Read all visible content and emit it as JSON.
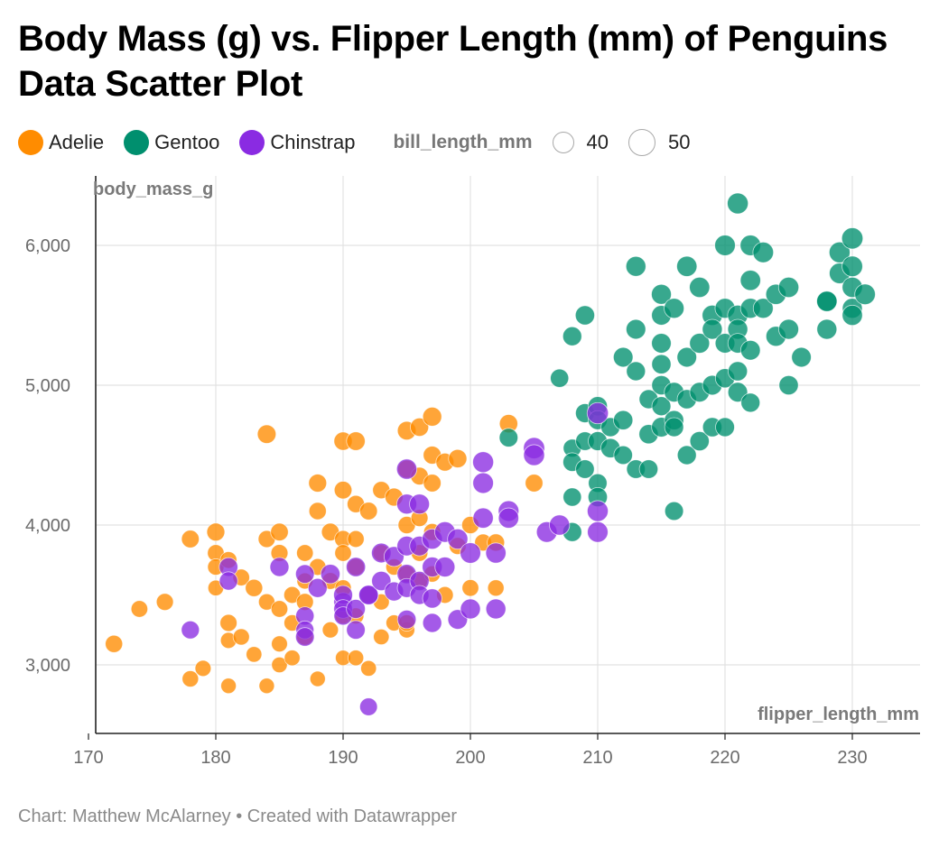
{
  "colors": {
    "Adelie": "#ff8c00",
    "Gentoo": "#008f6e",
    "Chinstrap": "#8a2be2",
    "grid": "#e2e2e2",
    "axis": "#222222"
  },
  "legend": {
    "species": [
      "Adelie",
      "Gentoo",
      "Chinstrap"
    ],
    "size_title": "bill_length_mm",
    "size_values": [
      "40",
      "50"
    ]
  },
  "credit": "Chart: Matthew McAlarney • Created with Datawrapper",
  "chart_data": {
    "type": "scatter",
    "title": "Body Mass (g) vs. Flipper Length (mm) of Penguins Data Scatter Plot",
    "xlabel": "flipper_length_mm",
    "ylabel": "body_mass_g",
    "xlim": [
      169,
      234
    ],
    "ylim": [
      2500,
      6500
    ],
    "xticks": [
      170,
      180,
      190,
      200,
      210,
      220,
      230
    ],
    "xtick_labels": [
      "170",
      "180",
      "190",
      "200",
      "210",
      "220",
      "230"
    ],
    "yticks": [
      3000,
      4000,
      5000,
      6000
    ],
    "ytick_labels": [
      "3,000",
      "4,000",
      "5,000",
      "6,000"
    ],
    "grid": true,
    "legend_position": "top-left",
    "series": [
      {
        "name": "Adelie",
        "x": [
          172,
          174,
          176,
          178,
          178,
          179,
          180,
          180,
          180,
          180,
          181,
          181,
          181,
          181,
          182,
          182,
          183,
          183,
          184,
          184,
          184,
          184,
          185,
          185,
          185,
          185,
          185,
          186,
          186,
          186,
          187,
          187,
          187,
          187,
          188,
          188,
          188,
          188,
          189,
          189,
          189,
          190,
          190,
          190,
          190,
          190,
          190,
          190,
          191,
          191,
          191,
          191,
          191,
          191,
          192,
          192,
          192,
          193,
          193,
          193,
          193,
          194,
          194,
          194,
          195,
          195,
          195,
          195,
          195,
          195,
          196,
          196,
          196,
          196,
          196,
          197,
          197,
          197,
          197,
          197,
          198,
          198,
          199,
          199,
          200,
          200,
          201,
          202,
          202,
          203,
          205
        ],
        "y": [
          3150,
          3400,
          3450,
          2900,
          3900,
          2975,
          3950,
          3800,
          3700,
          3550,
          3750,
          3300,
          3175,
          2850,
          3200,
          3625,
          3550,
          3075,
          4650,
          3900,
          3450,
          2850,
          3950,
          3400,
          3150,
          3000,
          3800,
          3500,
          3300,
          3050,
          3800,
          3600,
          3200,
          3450,
          4300,
          4100,
          3700,
          2900,
          3950,
          3600,
          3250,
          4600,
          4250,
          3900,
          3800,
          3550,
          3350,
          3050,
          4600,
          4150,
          3900,
          3700,
          3350,
          3050,
          4100,
          3500,
          2975,
          4250,
          3800,
          3450,
          3200,
          4200,
          3700,
          3300,
          4675,
          4400,
          4000,
          3650,
          3250,
          3300,
          4700,
          4350,
          4050,
          3800,
          3600,
          4775,
          4500,
          4300,
          3950,
          3650,
          4450,
          3500,
          4475,
          3850,
          4000,
          3550,
          3875,
          3550,
          3875,
          4725,
          4300
        ],
        "sizes": [
          42,
          40,
          41,
          39,
          43,
          38,
          44,
          40,
          39,
          37,
          40,
          41,
          38,
          36,
          39,
          40,
          42,
          37,
          46,
          41,
          39,
          36,
          43,
          40,
          38,
          37,
          41,
          40,
          39,
          37,
          40,
          38,
          39,
          41,
          44,
          42,
          40,
          36,
          43,
          40,
          38,
          45,
          43,
          41,
          40,
          39,
          38,
          36,
          46,
          42,
          40,
          41,
          38,
          37,
          43,
          39,
          37,
          42,
          40,
          38,
          37,
          44,
          39,
          38,
          46,
          44,
          42,
          40,
          38,
          39,
          45,
          43,
          41,
          40,
          39,
          47,
          44,
          43,
          41,
          39,
          44,
          40,
          45,
          41,
          42,
          40,
          41,
          39,
          42,
          45,
          43
        ]
      },
      {
        "name": "Gentoo",
        "x": [
          203,
          207,
          208,
          208,
          208,
          208,
          208,
          209,
          209,
          209,
          209,
          210,
          210,
          210,
          210,
          210,
          211,
          211,
          212,
          212,
          212,
          213,
          213,
          213,
          213,
          214,
          214,
          214,
          215,
          215,
          215,
          215,
          215,
          215,
          215,
          216,
          216,
          216,
          216,
          216,
          217,
          217,
          217,
          217,
          218,
          218,
          218,
          218,
          219,
          219,
          219,
          219,
          220,
          220,
          220,
          220,
          220,
          221,
          221,
          221,
          221,
          221,
          221,
          222,
          222,
          222,
          222,
          222,
          223,
          223,
          224,
          224,
          225,
          225,
          225,
          226,
          228,
          228,
          228,
          229,
          229,
          230,
          230,
          230,
          230,
          230,
          231
        ],
        "y": [
          4625,
          5050,
          5350,
          4550,
          4450,
          4200,
          3950,
          5500,
          4800,
          4600,
          4400,
          4850,
          4750,
          4600,
          4300,
          4200,
          4700,
          4550,
          5200,
          4750,
          4500,
          5850,
          5400,
          5100,
          4400,
          4650,
          4900,
          4400,
          5650,
          5500,
          5300,
          5150,
          5000,
          4850,
          4700,
          5550,
          4750,
          4950,
          4700,
          4100,
          5850,
          5200,
          4900,
          4500,
          5700,
          5300,
          4950,
          4600,
          5500,
          5400,
          5000,
          4700,
          6000,
          5550,
          5300,
          5050,
          4700,
          6300,
          5500,
          5400,
          5300,
          5100,
          4950,
          6000,
          5750,
          5550,
          5250,
          4875,
          5950,
          5550,
          5650,
          5350,
          5700,
          5400,
          5000,
          5200,
          5600,
          5600,
          5400,
          5950,
          5800,
          6050,
          5850,
          5700,
          5550,
          5500,
          5650
        ],
        "sizes": [
          46,
          45,
          47,
          44,
          46,
          45,
          47,
          48,
          47,
          46,
          46,
          48,
          47,
          47,
          46,
          48,
          47,
          48,
          49,
          48,
          46,
          50,
          49,
          47,
          46,
          48,
          47,
          46,
          50,
          49,
          49,
          48,
          48,
          47,
          49,
          50,
          48,
          49,
          47,
          46,
          51,
          49,
          48,
          47,
          51,
          50,
          49,
          48,
          51,
          50,
          49,
          48,
          52,
          50,
          49,
          48,
          47,
          53,
          51,
          50,
          49,
          48,
          49,
          52,
          51,
          50,
          49,
          47,
          52,
          50,
          51,
          50,
          51,
          50,
          48,
          49,
          52,
          51,
          50,
          53,
          52,
          54,
          52,
          51,
          50,
          51,
          52
        ]
      },
      {
        "name": "Chinstrap",
        "x": [
          178,
          181,
          181,
          185,
          187,
          187,
          187,
          187,
          188,
          189,
          190,
          190,
          190,
          190,
          191,
          191,
          191,
          192,
          192,
          192,
          193,
          193,
          194,
          194,
          195,
          195,
          195,
          195,
          195,
          195,
          196,
          196,
          196,
          196,
          197,
          197,
          197,
          197,
          198,
          198,
          199,
          199,
          200,
          200,
          201,
          201,
          201,
          202,
          202,
          203,
          203,
          205,
          205,
          206,
          207,
          210,
          210,
          210
        ],
        "y": [
          3250,
          3700,
          3600,
          3700,
          3650,
          3350,
          3250,
          3200,
          3550,
          3650,
          3450,
          3500,
          3400,
          3350,
          3700,
          3400,
          3250,
          3500,
          3500,
          2700,
          3800,
          3600,
          3775,
          3525,
          4400,
          4150,
          3850,
          3650,
          3550,
          3325,
          4150,
          3850,
          3600,
          3500,
          3900,
          3700,
          3475,
          3300,
          3950,
          3700,
          3900,
          3325,
          3800,
          3400,
          4450,
          4300,
          4050,
          3800,
          3400,
          4100,
          4050,
          4550,
          4500,
          3950,
          4000,
          4800,
          4100,
          3950
        ],
        "sizes": [
          44,
          46,
          45,
          47,
          46,
          45,
          44,
          46,
          47,
          48,
          46,
          47,
          46,
          45,
          48,
          47,
          46,
          49,
          48,
          43,
          49,
          48,
          50,
          47,
          51,
          50,
          49,
          48,
          47,
          46,
          50,
          49,
          48,
          47,
          51,
          50,
          48,
          47,
          52,
          50,
          51,
          49,
          52,
          50,
          53,
          52,
          51,
          51,
          50,
          52,
          51,
          54,
          53,
          52,
          51,
          54,
          53,
          52
        ]
      }
    ]
  }
}
